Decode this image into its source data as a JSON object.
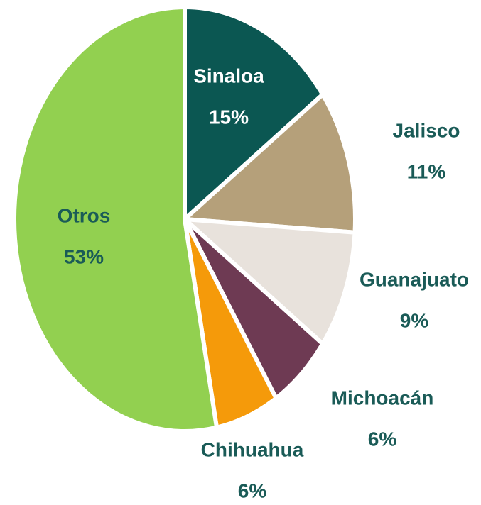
{
  "chart_data": {
    "type": "pie",
    "categories": [
      "Sinaloa",
      "Jalisco",
      "Guanajuato",
      "Michoacán",
      "Chihuahua",
      "Otros"
    ],
    "values": [
      15,
      11,
      9,
      6,
      6,
      53
    ],
    "value_labels": [
      "15%",
      "11%",
      "9%",
      "6%",
      "6%",
      "53%"
    ],
    "colors": [
      "#0b5752",
      "#b5a07a",
      "#e8e2dc",
      "#6e3a53",
      "#f59a0a",
      "#92d050"
    ]
  }
}
